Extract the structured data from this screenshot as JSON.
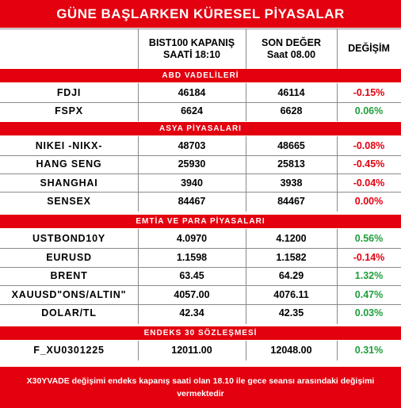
{
  "title": "GÜNE BAŞLARKEN KÜRESEL PİYASALAR",
  "columns": {
    "close_header": "BIST100 KAPANIŞ\nSAATİ 18:10",
    "last_header": "SON DEĞER\nSaat   08.00",
    "change_header": "DEĞİŞİM"
  },
  "colors": {
    "accent": "#e3000f",
    "positive": "#1e9e3a",
    "negative": "#e3000f"
  },
  "sections": [
    {
      "title": "ABD VADELİLERİ",
      "rows": [
        {
          "name": "FDJI",
          "close": "46184",
          "last": "46114",
          "change": "-0.15%",
          "direction": "down"
        },
        {
          "name": "FSPX",
          "close": "6624",
          "last": "6628",
          "change": "0.06%",
          "direction": "up"
        }
      ]
    },
    {
      "title": "ASYA PİYASALARI",
      "rows": [
        {
          "name": "NIKEI -NIKX-",
          "close": "48703",
          "last": "48665",
          "change": "-0.08%",
          "direction": "down"
        },
        {
          "name": "HANG SENG",
          "close": "25930",
          "last": "25813",
          "change": "-0.45%",
          "direction": "down"
        },
        {
          "name": "SHANGHAI",
          "close": "3940",
          "last": "3938",
          "change": "-0.04%",
          "direction": "down"
        },
        {
          "name": "SENSEX",
          "close": "84467",
          "last": "84467",
          "change": "0.00%",
          "direction": "down"
        }
      ]
    },
    {
      "title": "EMTİA VE PARA PİYASALARI",
      "rows": [
        {
          "name": "USTBOND10Y",
          "close": "4.0970",
          "last": "4.1200",
          "change": "0.56%",
          "direction": "up"
        },
        {
          "name": "EURUSD",
          "close": "1.1598",
          "last": "1.1582",
          "change": "-0.14%",
          "direction": "down"
        },
        {
          "name": "BRENT",
          "close": "63.45",
          "last": "64.29",
          "change": "1.32%",
          "direction": "up"
        },
        {
          "name": "XAUUSD\"ONS/ALTIN\"",
          "close": "4057.00",
          "last": "4076.11",
          "change": "0.47%",
          "direction": "up"
        },
        {
          "name": "DOLAR/TL",
          "close": "42.34",
          "last": "42.35",
          "change": "0.03%",
          "direction": "up"
        }
      ]
    },
    {
      "title": "ENDEKS 30 SÖZLEŞMESİ",
      "rows": [
        {
          "name": "F_XU0301225",
          "close": "12011.00",
          "last": "12048.00",
          "change": "0.31%",
          "direction": "up"
        }
      ]
    }
  ],
  "footer": "X30YVADE değişimi endeks kapanış saati olan 18.10 ile gece seansı arasındaki değişimi vermektedir"
}
